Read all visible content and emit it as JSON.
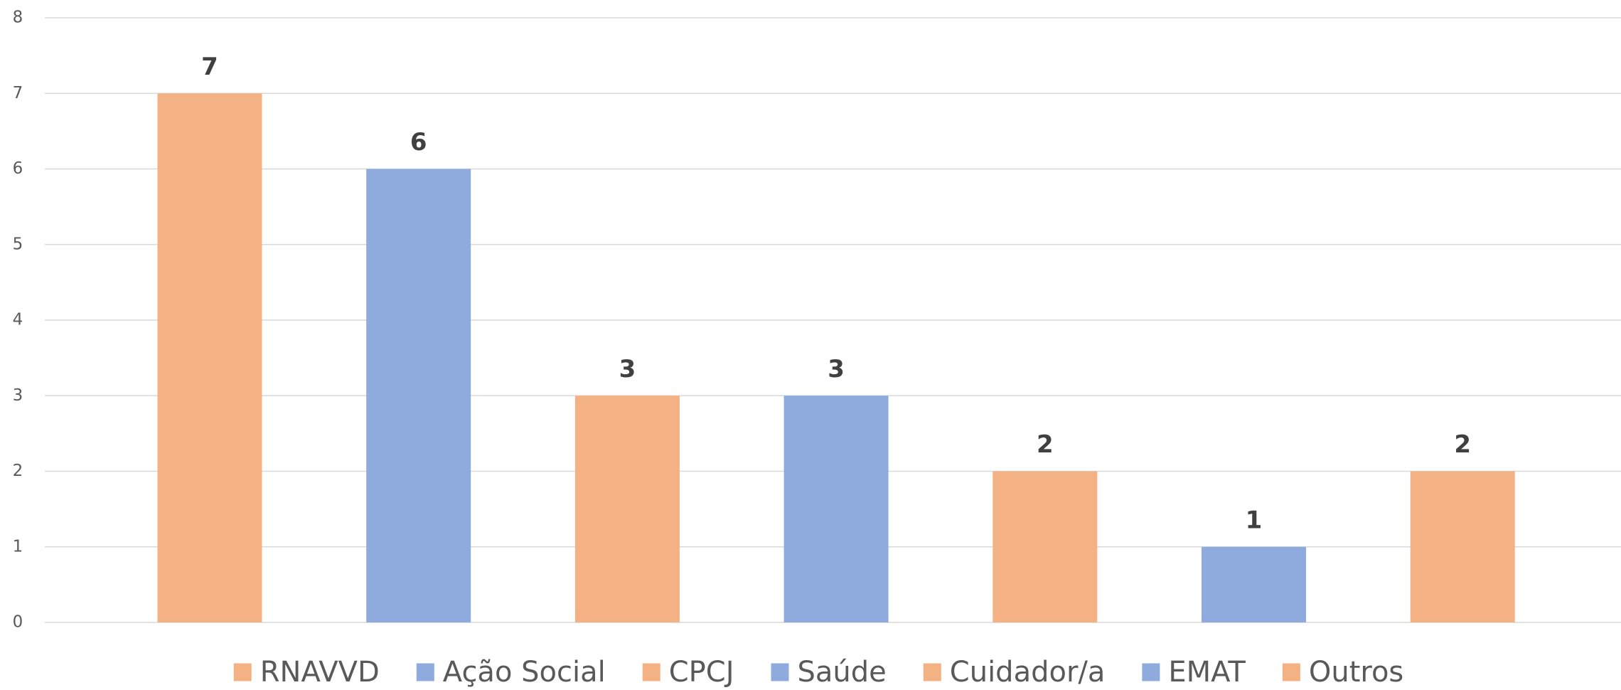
{
  "chart_data": {
    "type": "bar",
    "categories": [
      "RNAVVD",
      "Ação Social",
      "CPCJ",
      "Saúde",
      "Cuidador/a",
      "EMAT",
      "Outros"
    ],
    "values": [
      7,
      6,
      3,
      3,
      2,
      1,
      2
    ],
    "colors": [
      "#f4b183",
      "#8faadc",
      "#f4b183",
      "#8faadc",
      "#f4b183",
      "#8faadc",
      "#f4b183"
    ],
    "ylim": [
      0,
      8
    ],
    "yticks": [
      0,
      1,
      2,
      3,
      4,
      5,
      6,
      7,
      8
    ],
    "grid": true,
    "legend": "bottom"
  }
}
